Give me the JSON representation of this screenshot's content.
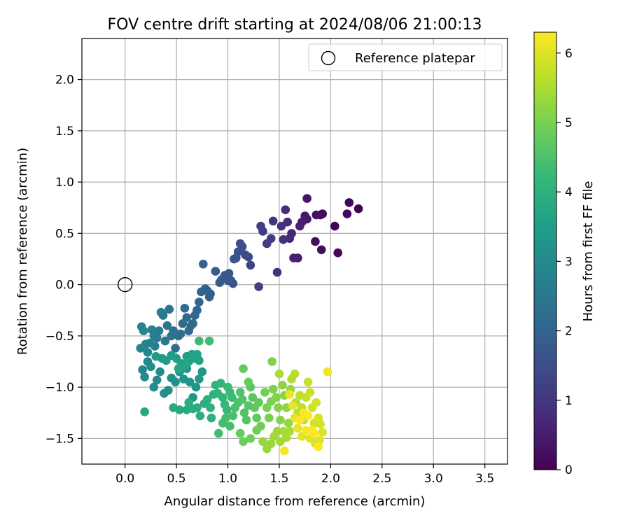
{
  "chart_data": {
    "type": "scatter",
    "title": "FOV centre drift starting at 2024/08/06 21:00:13",
    "xlabel": "Angular distance from reference (arcmin)",
    "ylabel": "Rotation from reference (arcmin)",
    "xlim": [
      -0.42,
      3.72
    ],
    "ylim": [
      -1.75,
      2.4
    ],
    "x_ticks": [
      0.0,
      0.5,
      1.0,
      1.5,
      2.0,
      2.5,
      3.0,
      3.5
    ],
    "x_tick_labels": [
      "0.0",
      "0.5",
      "1.0",
      "1.5",
      "2.0",
      "2.5",
      "3.0",
      "3.5"
    ],
    "y_ticks": [
      -1.5,
      -1.0,
      -0.5,
      0.0,
      0.5,
      1.0,
      1.5,
      2.0
    ],
    "y_tick_labels": [
      "−1.5",
      "−1.0",
      "−0.5",
      "0.0",
      "0.5",
      "1.0",
      "1.5",
      "2.0"
    ],
    "grid": true,
    "legend": {
      "position": "top-right",
      "entries": [
        {
          "label": "Reference platepar",
          "marker": "hollow-circle"
        }
      ]
    },
    "reference_point": {
      "x": 0.0,
      "y": 0.0
    },
    "colorbar": {
      "label": "Hours from first FF file",
      "colormap": "viridis",
      "range": [
        0,
        6.3
      ],
      "ticks": [
        0,
        1,
        2,
        3,
        4,
        5,
        6
      ],
      "tick_labels": [
        "0",
        "1",
        "2",
        "3",
        "4",
        "5",
        "6"
      ],
      "stops": [
        "#440154",
        "#482878",
        "#3e4989",
        "#31688e",
        "#26828e",
        "#1f9e89",
        "#35b779",
        "#6ece58",
        "#b5de2b",
        "#fde725"
      ]
    },
    "columns": [
      "x",
      "y",
      "hours"
    ],
    "points": [
      [
        2.27,
        0.74,
        0.0
      ],
      [
        2.18,
        0.8,
        0.05
      ],
      [
        2.16,
        0.69,
        0.1
      ],
      [
        2.07,
        0.31,
        0.12
      ],
      [
        2.04,
        0.57,
        0.08
      ],
      [
        1.92,
        0.69,
        0.15
      ],
      [
        1.9,
        0.68,
        0.2
      ],
      [
        1.91,
        0.34,
        0.22
      ],
      [
        1.86,
        0.68,
        0.3
      ],
      [
        1.85,
        0.42,
        0.25
      ],
      [
        1.77,
        0.84,
        0.35
      ],
      [
        1.75,
        0.67,
        0.4
      ],
      [
        1.77,
        0.64,
        0.45
      ],
      [
        1.72,
        0.61,
        0.5
      ],
      [
        1.7,
        0.57,
        0.55
      ],
      [
        1.68,
        0.26,
        0.5
      ],
      [
        1.64,
        0.26,
        0.6
      ],
      [
        1.62,
        0.5,
        0.65
      ],
      [
        1.6,
        0.45,
        0.7
      ],
      [
        1.58,
        0.61,
        0.75
      ],
      [
        1.56,
        0.73,
        0.8
      ],
      [
        1.54,
        0.44,
        0.85
      ],
      [
        1.52,
        0.57,
        0.9
      ],
      [
        1.48,
        0.12,
        0.95
      ],
      [
        1.44,
        0.62,
        1.0
      ],
      [
        1.42,
        0.45,
        1.05
      ],
      [
        1.38,
        0.4,
        1.1
      ],
      [
        1.34,
        0.52,
        1.15
      ],
      [
        1.32,
        0.57,
        1.2
      ],
      [
        1.3,
        -0.02,
        1.25
      ],
      [
        1.22,
        0.19,
        1.3
      ],
      [
        1.2,
        0.27,
        1.35
      ],
      [
        1.17,
        0.29,
        1.4
      ],
      [
        1.14,
        0.37,
        1.45
      ],
      [
        1.12,
        0.4,
        1.5
      ],
      [
        1.1,
        0.32,
        1.55
      ],
      [
        1.08,
        0.26,
        1.6
      ],
      [
        1.06,
        0.25,
        1.62
      ],
      [
        1.05,
        0.01,
        1.65
      ],
      [
        1.03,
        0.04,
        1.7
      ],
      [
        1.01,
        0.11,
        1.72
      ],
      [
        1.0,
        0.04,
        1.75
      ],
      [
        0.97,
        0.09,
        1.78
      ],
      [
        0.94,
        0.05,
        1.8
      ],
      [
        0.92,
        0.02,
        1.82
      ],
      [
        0.88,
        0.13,
        1.85
      ],
      [
        0.83,
        -0.09,
        1.88
      ],
      [
        0.82,
        -0.12,
        1.9
      ],
      [
        0.8,
        -0.06,
        1.92
      ],
      [
        0.78,
        -0.04,
        1.95
      ],
      [
        0.76,
        0.2,
        1.98
      ],
      [
        0.74,
        -0.07,
        2.0
      ],
      [
        0.72,
        -0.17,
        2.02
      ],
      [
        0.7,
        -0.25,
        2.05
      ],
      [
        0.68,
        -0.3,
        2.08
      ],
      [
        0.66,
        -0.38,
        2.1
      ],
      [
        0.64,
        -0.4,
        2.12
      ],
      [
        0.62,
        -0.45,
        2.15
      ],
      [
        0.6,
        -0.32,
        2.18
      ],
      [
        0.58,
        -0.23,
        2.2
      ],
      [
        0.56,
        -0.38,
        2.22
      ],
      [
        0.54,
        -0.48,
        2.25
      ],
      [
        0.52,
        -0.5,
        2.28
      ],
      [
        0.49,
        -0.62,
        2.3
      ],
      [
        0.47,
        -0.45,
        2.32
      ],
      [
        0.45,
        -0.5,
        2.35
      ],
      [
        0.43,
        -0.24,
        2.4
      ],
      [
        0.41,
        -0.4,
        2.45
      ],
      [
        0.39,
        -0.55,
        2.5
      ],
      [
        0.37,
        -0.3,
        2.55
      ],
      [
        0.35,
        -0.27,
        2.6
      ],
      [
        0.33,
        -0.45,
        2.62
      ],
      [
        0.31,
        -0.52,
        2.65
      ],
      [
        0.29,
        -0.6,
        2.7
      ],
      [
        0.28,
        -0.5,
        2.72
      ],
      [
        0.26,
        -0.44,
        2.75
      ],
      [
        0.24,
        -0.57,
        2.78
      ],
      [
        0.22,
        -0.66,
        2.8
      ],
      [
        0.2,
        -0.58,
        2.82
      ],
      [
        0.18,
        -0.45,
        2.85
      ],
      [
        0.16,
        -0.41,
        2.88
      ],
      [
        0.15,
        -0.62,
        2.9
      ],
      [
        0.17,
        -0.83,
        2.92
      ],
      [
        0.19,
        -0.9,
        2.95
      ],
      [
        0.22,
        -0.75,
        2.98
      ],
      [
        0.25,
        -0.8,
        3.0
      ],
      [
        0.28,
        -1.0,
        3.02
      ],
      [
        0.31,
        -0.93,
        3.05
      ],
      [
        0.34,
        -0.85,
        3.08
      ],
      [
        0.38,
        -1.06,
        3.1
      ],
      [
        0.42,
        -1.03,
        3.12
      ],
      [
        0.45,
        -0.91,
        3.15
      ],
      [
        0.49,
        -0.95,
        3.18
      ],
      [
        0.53,
        -0.85,
        3.2
      ],
      [
        0.57,
        -0.92,
        3.22
      ],
      [
        0.6,
        -0.82,
        3.25
      ],
      [
        0.63,
        -0.95,
        3.28
      ],
      [
        0.66,
        -1.1,
        3.3
      ],
      [
        0.69,
        -1.0,
        3.32
      ],
      [
        0.72,
        -0.92,
        3.35
      ],
      [
        0.75,
        -0.85,
        3.38
      ],
      [
        0.3,
        -0.7,
        3.4
      ],
      [
        0.36,
        -0.72,
        3.42
      ],
      [
        0.4,
        -0.74,
        3.45
      ],
      [
        0.45,
        -0.69,
        3.48
      ],
      [
        0.5,
        -0.72,
        3.5
      ],
      [
        0.55,
        -0.77,
        3.52
      ],
      [
        0.6,
        -0.7,
        3.55
      ],
      [
        0.65,
        -0.68,
        3.58
      ],
      [
        0.7,
        -0.68,
        3.6
      ],
      [
        0.72,
        -0.74,
        3.62
      ],
      [
        0.68,
        -0.72,
        3.65
      ],
      [
        0.62,
        -0.75,
        3.68
      ],
      [
        0.58,
        -0.79,
        3.7
      ],
      [
        0.52,
        -0.82,
        3.72
      ],
      [
        0.19,
        -1.24,
        3.75
      ],
      [
        0.47,
        -1.2,
        3.78
      ],
      [
        0.53,
        -1.22,
        3.8
      ],
      [
        0.6,
        -1.22,
        3.82
      ],
      [
        0.62,
        -1.15,
        3.85
      ],
      [
        0.66,
        -1.21,
        3.88
      ],
      [
        0.7,
        -1.2,
        3.9
      ],
      [
        0.73,
        -1.28,
        3.92
      ],
      [
        0.77,
        -1.16,
        3.95
      ],
      [
        0.8,
        -1.12,
        3.98
      ],
      [
        0.84,
        -1.3,
        4.0
      ],
      [
        0.83,
        -1.2,
        4.02
      ],
      [
        0.86,
        -1.07,
        4.05
      ],
      [
        0.88,
        -0.98,
        4.08
      ],
      [
        0.9,
        -1.06,
        4.1
      ],
      [
        0.93,
        -0.96,
        4.12
      ],
      [
        0.95,
        -1.1,
        4.15
      ],
      [
        0.97,
        -1.17,
        4.18
      ],
      [
        0.99,
        -1.22,
        4.2
      ],
      [
        1.0,
        -1.0,
        4.22
      ],
      [
        1.02,
        -1.05,
        4.25
      ],
      [
        1.04,
        -1.1,
        4.28
      ],
      [
        0.72,
        -0.55,
        4.3
      ],
      [
        0.82,
        -0.55,
        4.32
      ],
      [
        0.91,
        -1.45,
        4.35
      ],
      [
        0.95,
        -1.35,
        4.38
      ],
      [
        0.98,
        -1.3,
        4.4
      ],
      [
        1.02,
        -1.38,
        4.42
      ],
      [
        1.05,
        -1.28,
        4.45
      ],
      [
        1.07,
        -1.2,
        4.48
      ],
      [
        1.1,
        -1.15,
        4.5
      ],
      [
        1.12,
        -1.05,
        4.52
      ],
      [
        1.14,
        -1.12,
        4.55
      ],
      [
        1.16,
        -1.25,
        4.58
      ],
      [
        1.18,
        -1.32,
        4.6
      ],
      [
        1.2,
        -1.18,
        4.62
      ],
      [
        1.22,
        -1.0,
        4.65
      ],
      [
        1.24,
        -1.1,
        4.68
      ],
      [
        1.26,
        -1.2,
        4.7
      ],
      [
        1.28,
        -1.3,
        4.72
      ],
      [
        1.3,
        -1.15,
        4.75
      ],
      [
        1.15,
        -0.82,
        4.78
      ],
      [
        1.2,
        -0.95,
        4.8
      ],
      [
        1.12,
        -1.45,
        4.82
      ],
      [
        1.15,
        -1.53,
        4.85
      ],
      [
        1.22,
        -1.5,
        4.88
      ],
      [
        1.28,
        -1.42,
        4.9
      ],
      [
        1.32,
        -1.38,
        4.92
      ],
      [
        1.36,
        -1.05,
        4.95
      ],
      [
        1.38,
        -1.2,
        4.98
      ],
      [
        1.4,
        -1.3,
        5.0
      ],
      [
        1.42,
        -1.14,
        5.02
      ],
      [
        1.44,
        -1.02,
        5.05
      ],
      [
        1.43,
        -0.75,
        5.08
      ],
      [
        1.47,
        -1.1,
        5.1
      ],
      [
        1.49,
        -1.2,
        5.12
      ],
      [
        1.51,
        -1.32,
        5.15
      ],
      [
        1.53,
        -0.98,
        5.18
      ],
      [
        1.55,
        -1.08,
        5.2
      ],
      [
        1.57,
        -1.2,
        5.22
      ],
      [
        1.59,
        -1.35,
        5.25
      ],
      [
        1.61,
        -1.02,
        5.28
      ],
      [
        1.34,
        -1.53,
        5.3
      ],
      [
        1.38,
        -1.6,
        5.32
      ],
      [
        1.42,
        -1.55,
        5.35
      ],
      [
        1.45,
        -1.48,
        5.38
      ],
      [
        1.48,
        -1.43,
        5.4
      ],
      [
        1.51,
        -1.53,
        5.42
      ],
      [
        1.54,
        -1.43,
        5.45
      ],
      [
        1.57,
        -1.49,
        5.48
      ],
      [
        1.6,
        -1.43,
        5.5
      ],
      [
        1.5,
        -0.87,
        5.52
      ],
      [
        1.62,
        -0.92,
        5.55
      ],
      [
        1.65,
        -0.87,
        5.6
      ],
      [
        1.66,
        -1.15,
        5.62
      ],
      [
        1.68,
        -1.25,
        5.65
      ],
      [
        1.7,
        -1.08,
        5.68
      ],
      [
        1.72,
        -1.2,
        5.7
      ],
      [
        1.74,
        -1.32,
        5.72
      ],
      [
        1.76,
        -1.1,
        5.75
      ],
      [
        1.78,
        -0.95,
        5.78
      ],
      [
        1.8,
        -1.05,
        5.8
      ],
      [
        1.82,
        -1.2,
        5.82
      ],
      [
        1.84,
        -1.35,
        5.85
      ],
      [
        1.86,
        -1.15,
        5.88
      ],
      [
        1.88,
        -1.3,
        5.9
      ],
      [
        1.9,
        -1.36,
        5.92
      ],
      [
        1.92,
        -1.44,
        5.95
      ],
      [
        1.89,
        -1.52,
        5.98
      ],
      [
        1.85,
        -1.55,
        6.0
      ],
      [
        1.8,
        -1.5,
        6.02
      ],
      [
        1.72,
        -1.48,
        6.05
      ],
      [
        1.68,
        -1.4,
        6.08
      ],
      [
        1.65,
        -1.3,
        6.1
      ],
      [
        1.63,
        -1.18,
        6.12
      ],
      [
        1.6,
        -1.07,
        6.15
      ],
      [
        1.97,
        -0.85,
        6.18
      ],
      [
        1.55,
        -1.62,
        6.2
      ],
      [
        1.76,
        -1.42,
        6.22
      ],
      [
        1.82,
        -1.42,
        6.25
      ],
      [
        1.7,
        -1.32,
        6.27
      ],
      [
        1.74,
        -1.25,
        6.28
      ],
      [
        1.78,
        -1.28,
        6.29
      ],
      [
        1.84,
        -1.45,
        6.3
      ],
      [
        1.88,
        -1.58,
        6.3
      ]
    ]
  }
}
